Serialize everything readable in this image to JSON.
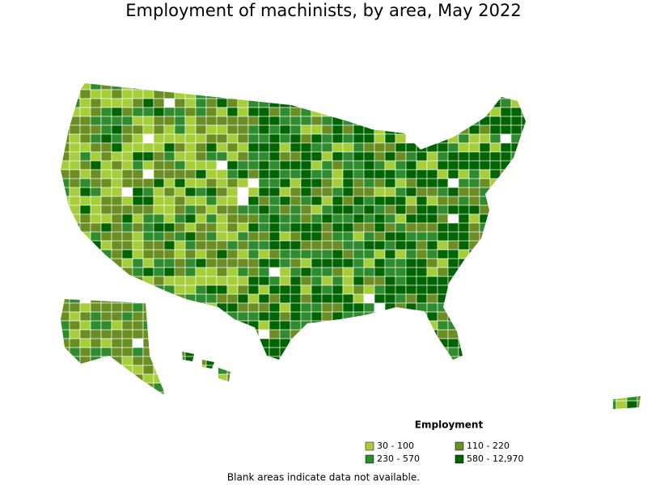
{
  "title": "Employment of machinists, by area, May 2022",
  "legend": {
    "title": "Employment",
    "items": [
      {
        "label": "30 - 100",
        "color": "#a6ce39"
      },
      {
        "label": "110 - 220",
        "color": "#6b8e23"
      },
      {
        "label": "230 - 570",
        "color": "#2e8b2e"
      },
      {
        "label": "580 - 12,970",
        "color": "#006400"
      }
    ]
  },
  "note": "Blank areas indicate data not available."
}
